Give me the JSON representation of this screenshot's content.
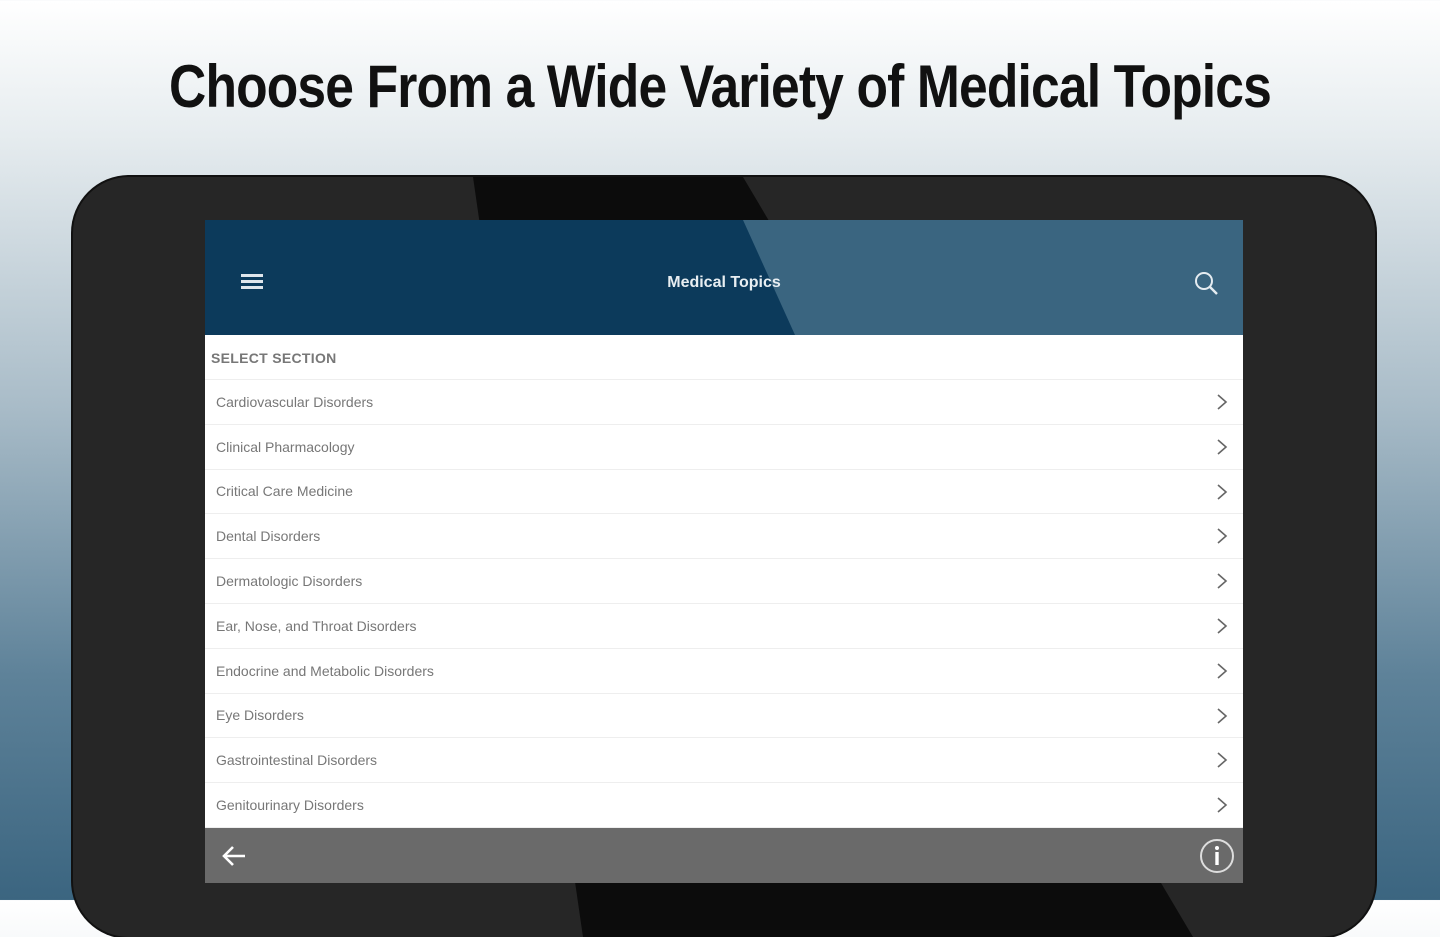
{
  "headline": "Choose From a Wide Variety of Medical Topics",
  "app": {
    "title": "Medical Topics",
    "section_header": "SELECT SECTION",
    "items": [
      {
        "label": "Cardiovascular Disorders"
      },
      {
        "label": "Clinical Pharmacology"
      },
      {
        "label": "Critical Care Medicine"
      },
      {
        "label": "Dental Disorders"
      },
      {
        "label": "Dermatologic Disorders"
      },
      {
        "label": "Ear, Nose, and Throat Disorders"
      },
      {
        "label": "Endocrine and Metabolic Disorders"
      },
      {
        "label": "Eye Disorders"
      },
      {
        "label": "Gastrointestinal Disorders"
      },
      {
        "label": "Genitourinary Disorders"
      }
    ],
    "icons": {
      "menu": "hamburger-icon",
      "search": "search-icon",
      "row": "chevron-right-icon",
      "back": "arrow-left-icon",
      "info": "info-icon"
    },
    "colors": {
      "appbar": "#0c3a5b",
      "appbar_accent": "#3a6580",
      "footer": "#6a6a6a"
    }
  }
}
